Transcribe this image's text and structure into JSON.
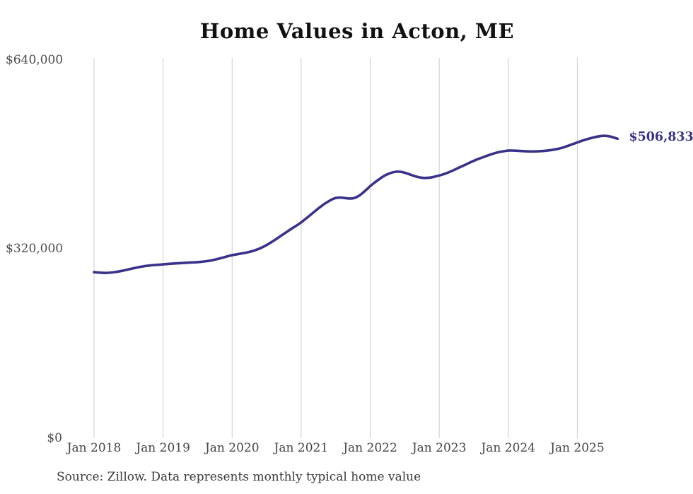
{
  "page": {
    "source_note": "Source: Zillow. Data represents monthly typical home value"
  },
  "colors": {
    "line": "#39318a",
    "grid": "#cccccc",
    "axis_text": "#4b4b4b",
    "title_text": "#111111",
    "source_text": "#3a3a3a",
    "annotation_text": "#39318a",
    "background": "#ffffff"
  },
  "chart_data": {
    "type": "line",
    "title": "Home Values in Acton, ME",
    "x_tick_labels": [
      "Jan 2018",
      "Jan 2019",
      "Jan 2020",
      "Jan 2021",
      "Jan 2022",
      "Jan 2023",
      "Jan 2024",
      "Jan 2025"
    ],
    "y_tick_labels": [
      "$0",
      "$320,000",
      "$640,000"
    ],
    "ylim": [
      0,
      640000
    ],
    "x_range": {
      "start": "Jan 2018",
      "end": "Aug 2025",
      "interval": "monthly"
    },
    "grid": "vertical",
    "legend": "none",
    "final_value": 506833,
    "final_value_label": "$506,833",
    "series": [
      {
        "name": "Typical home value",
        "values": [
          281000,
          280000,
          279600,
          280300,
          281600,
          283500,
          285800,
          288000,
          290000,
          291500,
          292700,
          293500,
          294300,
          295000,
          295700,
          296300,
          296900,
          297400,
          297900,
          298800,
          300200,
          302200,
          304600,
          307300,
          310000,
          311500,
          313200,
          315200,
          318000,
          321800,
          326800,
          332800,
          339200,
          346000,
          352500,
          358800,
          365000,
          373000,
          381000,
          389000,
          396500,
          402500,
          407000,
          407500,
          405800,
          405500,
          409500,
          417500,
          427000,
          434500,
          441500,
          447000,
          450500,
          451500,
          449500,
          446000,
          442500,
          440500,
          440500,
          442000,
          444500,
          447500,
          451500,
          456000,
          460500,
          465000,
          469500,
          473500,
          477000,
          480500,
          483500,
          485500,
          487000,
          486800,
          486200,
          485600,
          485300,
          485500,
          486000,
          487000,
          488500,
          490500,
          493500,
          497000,
          500500,
          504000,
          507000,
          509500,
          511500,
          512000,
          510000,
          506833
        ]
      }
    ]
  }
}
